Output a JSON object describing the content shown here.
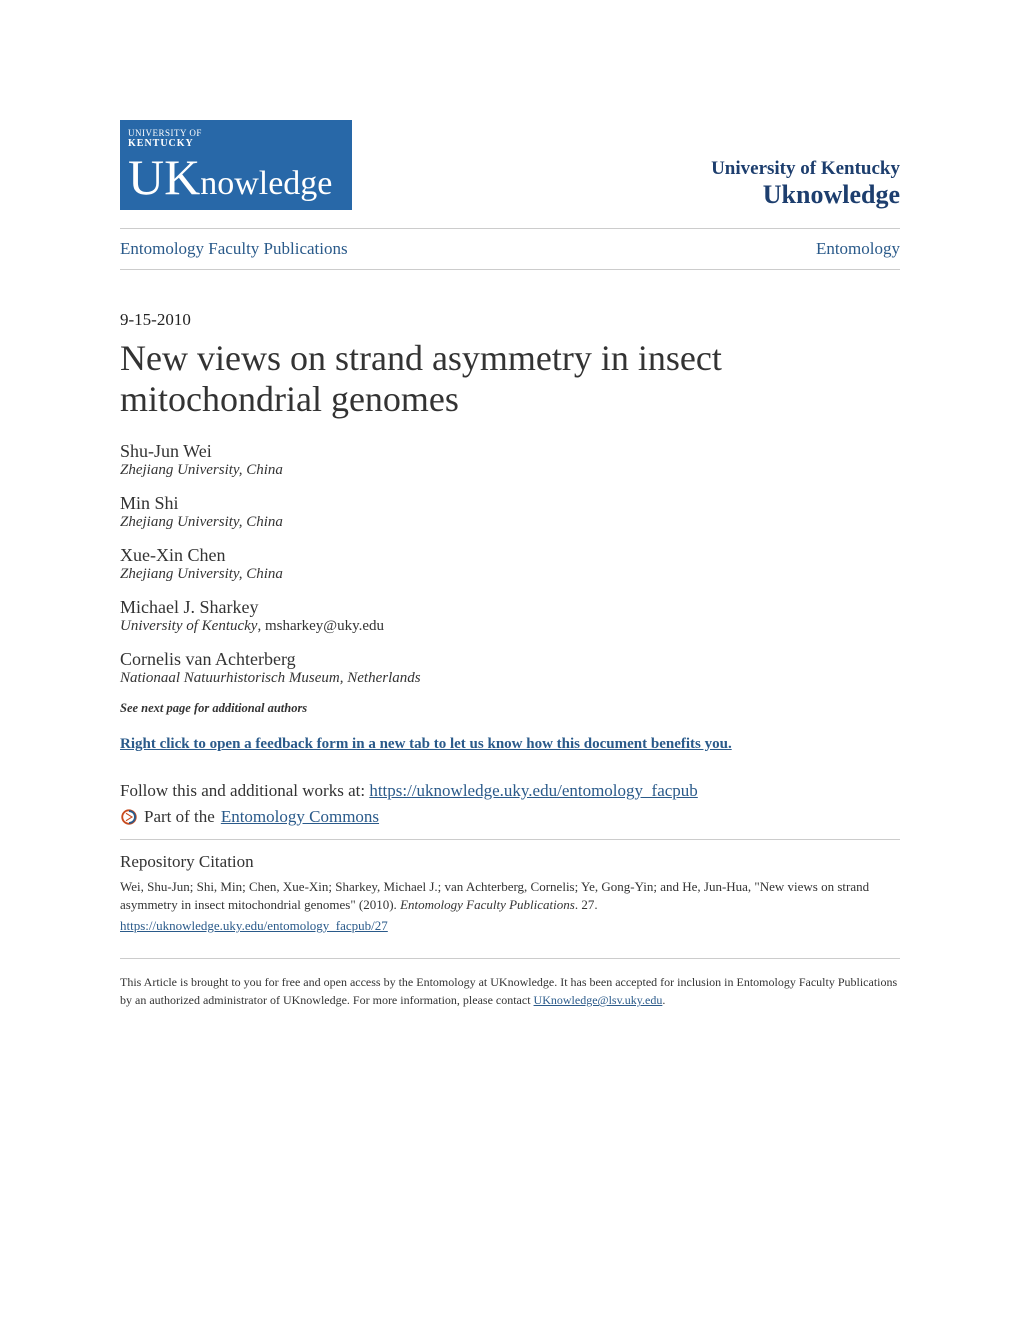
{
  "header": {
    "logo": {
      "small_line1": "UNIVERSITY OF",
      "small_line2": "KENTUCKY",
      "main_cap": "U",
      "main_k": "K",
      "main_rest": "nowledge",
      "bg_color": "#2868a8",
      "text_color": "#ffffff"
    },
    "institution": {
      "name": "University of Kentucky",
      "subtitle": "Uknowledge",
      "color": "#1d3e6e"
    }
  },
  "breadcrumb": {
    "left": "Entomology Faculty Publications",
    "right": "Entomology"
  },
  "date": "9-15-2010",
  "title": "New views on strand asymmetry in insect mitochondrial genomes",
  "authors": [
    {
      "name": "Shu-Jun Wei",
      "affiliation": "Zhejiang University, China",
      "email": ""
    },
    {
      "name": "Min Shi",
      "affiliation": "Zhejiang University, China",
      "email": ""
    },
    {
      "name": "Xue-Xin Chen",
      "affiliation": "Zhejiang University, China",
      "email": ""
    },
    {
      "name": "Michael J. Sharkey",
      "affiliation": "University of Kentucky",
      "email": "msharkey@uky.edu"
    },
    {
      "name": "Cornelis van Achterberg",
      "affiliation": "Nationaal Natuurhistorisch Museum, Netherlands",
      "email": ""
    }
  ],
  "see_next": "See next page for additional authors",
  "feedback_text": "Right click to open a feedback form in a new tab to let us know how this document benefits you.",
  "follow": {
    "prefix": "Follow this and additional works at: ",
    "url": "https://uknowledge.uky.edu/entomology_facpub"
  },
  "part_of": {
    "prefix": "Part of the ",
    "link_text": "Entomology Commons"
  },
  "citation": {
    "heading": "Repository Citation",
    "body_plain1": "Wei, Shu-Jun; Shi, Min; Chen, Xue-Xin; Sharkey, Michael J.; van Achterberg, Cornelis; Ye, Gong-Yin; and He, Jun-Hua, \"New views on strand asymmetry in insect mitochondrial genomes\" (2010). ",
    "body_italic": "Entomology Faculty Publications",
    "body_plain2": ". 27.",
    "url": "https://uknowledge.uky.edu/entomology_facpub/27"
  },
  "footer": {
    "text1": "This Article is brought to you for free and open access by the Entomology at UKnowledge. It has been accepted for inclusion in Entomology Faculty Publications by an authorized administrator of UKnowledge. For more information, please contact ",
    "email": "UKnowledge@lsv.uky.edu",
    "text2": "."
  },
  "colors": {
    "link": "#2a5a8a",
    "text": "#333333",
    "divider": "#cccccc",
    "background": "#ffffff"
  },
  "typography": {
    "body_font": "Georgia, serif",
    "title_size_pt": 27,
    "author_name_size_pt": 13.5,
    "affiliation_size_pt": 11
  }
}
